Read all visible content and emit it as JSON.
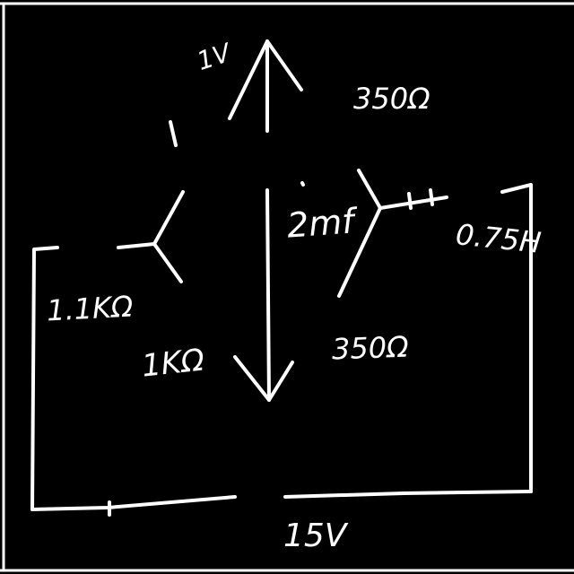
{
  "labels": {
    "voltage_small": "1V",
    "resistor_top_right": "350Ω",
    "capacitor": "2mf",
    "inductor": "0.75H",
    "resistor_left": "1.1KΩ",
    "resistor_mid_left": "1KΩ",
    "resistor_mid_right": "350Ω",
    "source_bottom": "15V"
  },
  "colors": {
    "background": "#000000",
    "ink": "#ffffff"
  }
}
